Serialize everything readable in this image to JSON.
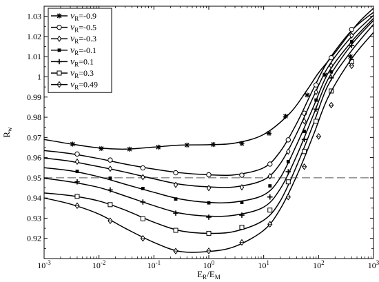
{
  "chart_data": {
    "type": "line",
    "x_scale": "log",
    "xlim": [
      0.001,
      1000
    ],
    "ylim": [
      0.91,
      1.035
    ],
    "x_ticks": [
      {
        "value": 0.001,
        "base": "10",
        "exp": "-3"
      },
      {
        "value": 0.01,
        "base": "10",
        "exp": "-2"
      },
      {
        "value": 0.1,
        "base": "10",
        "exp": "-1"
      },
      {
        "value": 1,
        "base": "10",
        "exp": "0"
      },
      {
        "value": 10,
        "base": "10",
        "exp": "1"
      },
      {
        "value": 100,
        "base": "10",
        "exp": "2"
      },
      {
        "value": 1000,
        "base": "10",
        "exp": "3"
      }
    ],
    "y_ticks": [
      {
        "value": 0.92,
        "label": "0.92"
      },
      {
        "value": 0.93,
        "label": "0.93"
      },
      {
        "value": 0.94,
        "label": "0.94"
      },
      {
        "value": 0.95,
        "label": "0.95"
      },
      {
        "value": 0.96,
        "label": "0.96"
      },
      {
        "value": 0.97,
        "label": "0.97"
      },
      {
        "value": 0.98,
        "label": "0.98"
      },
      {
        "value": 0.99,
        "label": "0.99"
      },
      {
        "value": 1.0,
        "label": "1"
      },
      {
        "value": 1.01,
        "label": "1.01"
      },
      {
        "value": 1.02,
        "label": "1.02"
      },
      {
        "value": 1.03,
        "label": "1.03"
      }
    ],
    "xlabel": {
      "main": "E",
      "sub1": "R",
      "slash": "/E",
      "sub2": "M"
    },
    "ylabel": {
      "main": "R",
      "sub": "w"
    },
    "grid": false,
    "legend_position": "top-left",
    "reference_line": {
      "y": 0.95,
      "style": "dashed"
    },
    "series": [
      {
        "name": "-0.9",
        "marker": "star",
        "x": [
          0.001,
          0.003,
          0.01,
          0.03,
          0.1,
          0.3,
          1,
          3,
          10,
          30,
          60,
          100,
          200,
          500,
          1000
        ],
        "y": [
          0.969,
          0.9668,
          0.9648,
          0.9642,
          0.9652,
          0.9662,
          0.9664,
          0.9672,
          0.9715,
          0.982,
          0.993,
          1.002,
          1.012,
          1.026,
          1.034
        ],
        "marker_x": [
          0.0033,
          0.011,
          0.036,
          0.12,
          0.4,
          1.2,
          4,
          12.5,
          25,
          62,
          130,
          380
        ],
        "marker_y": [
          0.9667,
          0.9645,
          0.9642,
          0.9652,
          0.9662,
          0.9665,
          0.967,
          0.972,
          0.9805,
          0.991,
          1.001,
          1.01
        ]
      },
      {
        "name": "-0.5",
        "marker": "circle",
        "x": [
          0.001,
          0.003,
          0.01,
          0.03,
          0.1,
          0.3,
          1,
          3,
          10,
          20,
          40,
          80,
          150,
          400,
          1000
        ],
        "y": [
          0.9635,
          0.962,
          0.9595,
          0.9568,
          0.9543,
          0.9525,
          0.9515,
          0.9515,
          0.955,
          0.963,
          0.977,
          0.994,
          1.008,
          1.023,
          1.032
        ],
        "marker_x": [
          0.004,
          0.016,
          0.063,
          0.25,
          1,
          4,
          13,
          28,
          55,
          90,
          170,
          400
        ],
        "marker_y": [
          0.9618,
          0.9588,
          0.9549,
          0.9525,
          0.9515,
          0.9513,
          0.9568,
          0.9688,
          0.982,
          0.996,
          1.0095,
          1.0235
        ]
      },
      {
        "name": "-0.3",
        "marker": "diamond",
        "x": [
          0.001,
          0.003,
          0.01,
          0.03,
          0.1,
          0.3,
          1,
          3,
          10,
          20,
          40,
          80,
          150,
          400,
          1000
        ],
        "y": [
          0.9598,
          0.9582,
          0.9555,
          0.9528,
          0.9495,
          0.9468,
          0.9455,
          0.9455,
          0.949,
          0.957,
          0.972,
          0.99,
          1.005,
          1.02,
          1.0305
        ],
        "marker_x": [
          0.004,
          0.016,
          0.063,
          0.25,
          1,
          4,
          13,
          28,
          55,
          90,
          170,
          400
        ],
        "marker_y": [
          0.958,
          0.9545,
          0.9503,
          0.9465,
          0.9449,
          0.9453,
          0.9508,
          0.963,
          0.978,
          0.9925,
          1.0055,
          1.0205
        ]
      },
      {
        "name": "-0.1",
        "marker": "square-filled",
        "x": [
          0.001,
          0.003,
          0.01,
          0.03,
          0.1,
          0.3,
          1,
          3,
          10,
          20,
          40,
          80,
          150,
          400,
          1000
        ],
        "y": [
          0.955,
          0.9535,
          0.9505,
          0.9468,
          0.9428,
          0.9395,
          0.9378,
          0.938,
          0.9415,
          0.95,
          0.9665,
          0.985,
          1.002,
          1.0175,
          1.029
        ],
        "marker_x": [
          0.004,
          0.016,
          0.063,
          0.25,
          1,
          4,
          13,
          28,
          55,
          90,
          170,
          400
        ],
        "marker_y": [
          0.9532,
          0.9498,
          0.9447,
          0.9395,
          0.9376,
          0.9378,
          0.946,
          0.958,
          0.973,
          0.9885,
          1.0025,
          1.0175
        ]
      },
      {
        "name": "0.1",
        "marker": "plus",
        "x": [
          0.001,
          0.003,
          0.01,
          0.03,
          0.1,
          0.3,
          1,
          3,
          10,
          20,
          40,
          80,
          150,
          400,
          1000
        ],
        "y": [
          0.9498,
          0.948,
          0.9452,
          0.941,
          0.9362,
          0.9325,
          0.931,
          0.9315,
          0.9355,
          0.9445,
          0.961,
          0.981,
          0.999,
          1.016,
          1.028
        ],
        "marker_x": [
          0.004,
          0.016,
          0.063,
          0.25,
          1,
          4,
          13,
          28,
          55,
          90,
          170,
          400
        ],
        "marker_y": [
          0.948,
          0.944,
          0.938,
          0.9325,
          0.9305,
          0.9315,
          0.9405,
          0.953,
          0.969,
          0.984,
          0.9995,
          1.0155
        ]
      },
      {
        "name": "0.3",
        "marker": "square",
        "x": [
          0.001,
          0.003,
          0.01,
          0.03,
          0.1,
          0.3,
          1,
          3,
          10,
          20,
          40,
          80,
          150,
          400,
          1000
        ],
        "y": [
          0.9425,
          0.9412,
          0.9385,
          0.934,
          0.928,
          0.9238,
          0.9225,
          0.9235,
          0.929,
          0.9385,
          0.956,
          0.9765,
          0.996,
          1.013,
          1.026
        ],
        "marker_x": [
          0.004,
          0.016,
          0.063,
          0.25,
          1,
          4,
          13,
          28,
          55,
          90,
          170,
          400
        ],
        "marker_y": [
          0.9408,
          0.9367,
          0.9297,
          0.924,
          0.9225,
          0.9255,
          0.934,
          0.948,
          0.963,
          0.978,
          0.993,
          1.0075
        ]
      },
      {
        "name": "0.49",
        "marker": "diamond-cross",
        "x": [
          0.001,
          0.003,
          0.01,
          0.03,
          0.1,
          0.3,
          1,
          3,
          10,
          20,
          40,
          80,
          150,
          400,
          1000
        ],
        "y": [
          0.94,
          0.937,
          0.932,
          0.925,
          0.918,
          0.9135,
          0.9135,
          0.916,
          0.924,
          0.9345,
          0.951,
          0.971,
          0.99,
          1.009,
          1.022
        ],
        "marker_x": [
          0.004,
          0.016,
          0.063,
          0.25,
          1,
          4,
          13,
          28,
          55,
          100,
          170,
          400
        ],
        "marker_y": [
          0.9362,
          0.9287,
          0.92,
          0.9137,
          0.9138,
          0.918,
          0.927,
          0.9405,
          0.9555,
          0.9705,
          0.986,
          1.0055
        ]
      }
    ]
  },
  "legend": {
    "symbol": "ν",
    "subscript": "R",
    "equals": "=",
    "items": [
      "-0.9",
      "-0.5",
      "-0.3",
      "-0.1",
      "0.1",
      "0.3",
      "0.49"
    ]
  }
}
